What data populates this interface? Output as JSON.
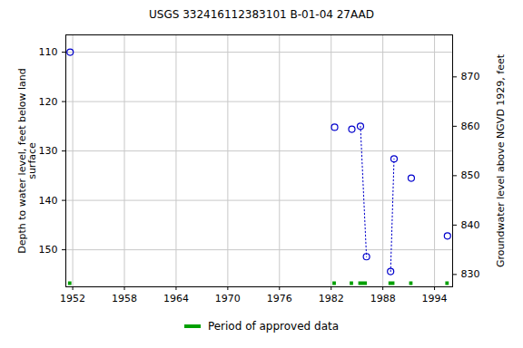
{
  "chart_data": {
    "type": "scatter",
    "title": "USGS 332416112383101 B-01-04 27AAD",
    "y_label": "Depth to water level, feet below land\nsurface",
    "y2_label": "Groundwater level above NGVD 1929, feet",
    "x": [
      1951.7,
      1982.4,
      1984.4,
      1985.4,
      1986.1,
      1988.9,
      1989.3,
      1991.3,
      1995.5
    ],
    "values": [
      110,
      125.2,
      125.6,
      125.0,
      151.4,
      154.4,
      131.6,
      135.5,
      147.2
    ],
    "color": "#0000cc",
    "marker": "circle",
    "segments": [
      {
        "x": [
          1985.4,
          1986.1
        ],
        "values": [
          125.0,
          151.4
        ]
      },
      {
        "x": [
          1988.9,
          1989.3
        ],
        "values": [
          154.4,
          131.6
        ]
      }
    ],
    "line_style": "dotted",
    "approved_periods": {
      "name": "Period of approved data",
      "color": "#00a000",
      "start": [
        1951.5,
        1982.2,
        1984.2,
        1985.2,
        1988.7,
        1991.1,
        1995.3
      ],
      "end": [
        1951.9,
        1982.6,
        1984.6,
        1986.2,
        1989.4,
        1991.5,
        1995.7
      ]
    },
    "xlim": [
      1951.2,
      1996.1
    ],
    "xticks": [
      1952,
      1958,
      1964,
      1970,
      1976,
      1982,
      1988,
      1994
    ],
    "ylim": [
      157.5,
      106.5
    ],
    "yticks": [
      110,
      120,
      130,
      140,
      150
    ],
    "y2lim": [
      827.5,
      878.5
    ],
    "y2ticks": [
      830,
      840,
      850,
      860,
      870
    ],
    "grid": true
  }
}
